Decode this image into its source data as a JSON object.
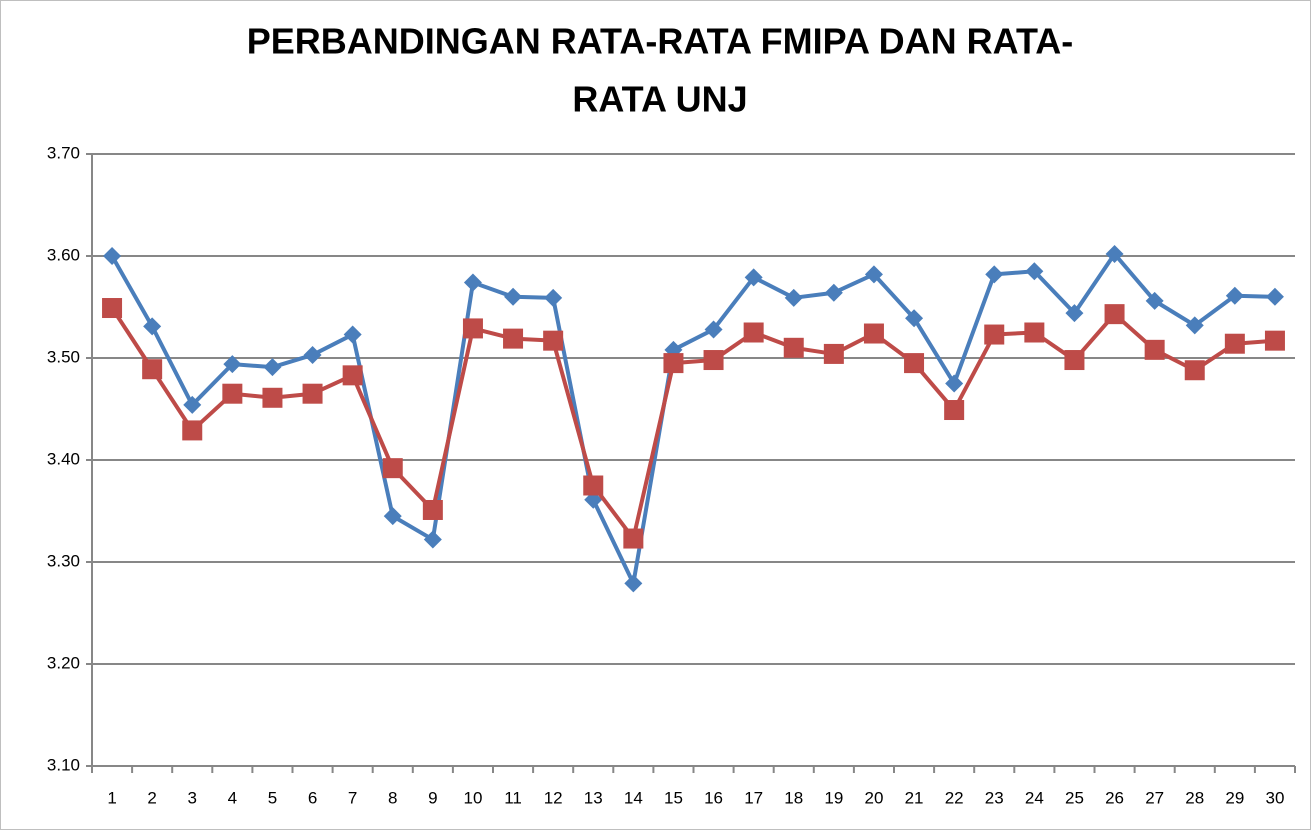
{
  "chart_data": {
    "type": "line",
    "title": [
      "PERBANDINGAN RATA-RATA FMIPA DAN RATA-",
      "RATA UNJ"
    ],
    "categories": [
      "1",
      "2",
      "3",
      "4",
      "5",
      "6",
      "7",
      "8",
      "9",
      "10",
      "11",
      "12",
      "13",
      "14",
      "15",
      "16",
      "17",
      "18",
      "19",
      "20",
      "21",
      "22",
      "23",
      "24",
      "25",
      "26",
      "27",
      "28",
      "29",
      "30"
    ],
    "series": [
      {
        "color": "#4a7ebb",
        "marker": "diamond",
        "values": [
          3.6,
          3.531,
          3.454,
          3.494,
          3.491,
          3.503,
          3.523,
          3.345,
          3.322,
          3.574,
          3.56,
          3.559,
          3.361,
          3.279,
          3.508,
          3.528,
          3.579,
          3.559,
          3.564,
          3.582,
          3.539,
          3.475,
          3.582,
          3.585,
          3.544,
          3.602,
          3.556,
          3.532,
          3.561,
          3.56
        ]
      },
      {
        "color": "#be4b48",
        "marker": "square",
        "values": [
          3.549,
          3.489,
          3.429,
          3.465,
          3.461,
          3.465,
          3.483,
          3.392,
          3.351,
          3.529,
          3.519,
          3.517,
          3.375,
          3.323,
          3.495,
          3.498,
          3.525,
          3.51,
          3.504,
          3.524,
          3.495,
          3.449,
          3.523,
          3.525,
          3.498,
          3.543,
          3.508,
          3.488,
          3.514,
          3.517
        ]
      }
    ],
    "ylim": [
      3.1,
      3.7
    ],
    "yticks": [
      {
        "value": 3.1,
        "label": "3.10"
      },
      {
        "value": 3.2,
        "label": "3.20"
      },
      {
        "value": 3.3,
        "label": "3.30"
      },
      {
        "value": 3.4,
        "label": "3.40"
      },
      {
        "value": 3.5,
        "label": "3.50"
      },
      {
        "value": 3.6,
        "label": "3.60"
      },
      {
        "value": 3.7,
        "label": "3.70"
      }
    ],
    "grid": true
  }
}
